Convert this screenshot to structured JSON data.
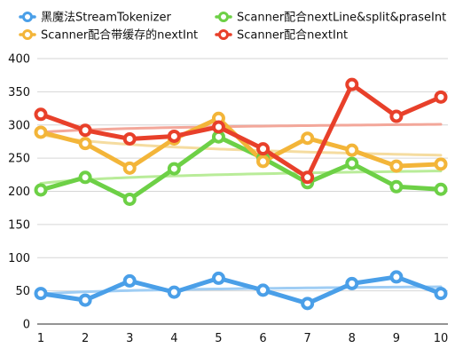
{
  "chart_data": {
    "type": "line",
    "x": [
      1,
      2,
      3,
      4,
      5,
      6,
      7,
      8,
      9,
      10
    ],
    "ylim": [
      0,
      400
    ],
    "yticks": [
      0,
      50,
      100,
      150,
      200,
      250,
      300,
      350,
      400
    ],
    "grid": "horizontal",
    "legend_position": "top",
    "series": [
      {
        "name": "黑魔法StreamTokenizer",
        "color": "#4a9fe8",
        "trend_color": "#9fcdf4",
        "values": [
          46,
          36,
          65,
          48,
          69,
          51,
          31,
          61,
          71,
          46
        ]
      },
      {
        "name": "Scanner配合nextLine&split&praseInt",
        "color": "#6dd046",
        "trend_color": "#b9ec99",
        "values": [
          202,
          221,
          188,
          234,
          282,
          250,
          213,
          242,
          207,
          203
        ]
      },
      {
        "name": "Scanner配合带缓存的nextInt",
        "color": "#f3b539",
        "trend_color": "#f5dca0",
        "values": [
          289,
          272,
          235,
          279,
          310,
          245,
          280,
          262,
          238,
          241
        ]
      },
      {
        "name": "Scanner配合nextInt",
        "color": "#e8402a",
        "trend_color": "#f3a79a",
        "values": [
          316,
          292,
          279,
          283,
          297,
          264,
          221,
          361,
          313,
          342
        ]
      }
    ]
  }
}
